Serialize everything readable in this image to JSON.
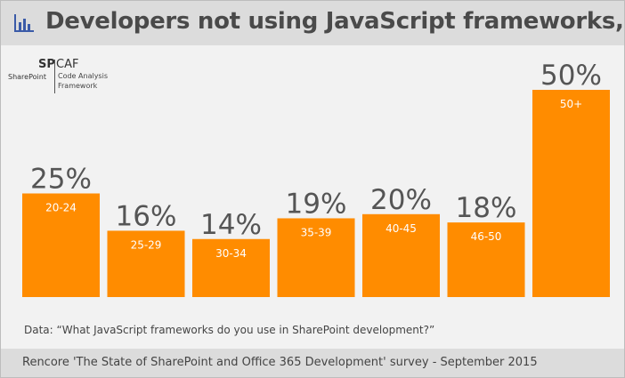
{
  "title": "Developers not using JavaScript frameworks, by age",
  "logo": {
    "sp": "SP",
    "caf": "CAF",
    "sharepoint": "SharePoint",
    "sub_line1": "Code Analysis",
    "sub_line2": "Framework"
  },
  "footnote": "Data: “What JavaScript frameworks do you use in SharePoint development?”",
  "source": "Rencore 'The State of SharePoint and Office 365 Development' survey - September 2015",
  "colors": {
    "bar": "#ff8c00",
    "header_bg": "#dcdcdc",
    "value_text": "#555555",
    "icon": "#3b5ba8"
  },
  "header_icon": "bar-chart-icon",
  "chart_data": {
    "type": "bar",
    "categories": [
      "20-24",
      "25-29",
      "30-34",
      "35-39",
      "40-45",
      "46-50",
      "50+"
    ],
    "values": [
      25,
      16,
      14,
      19,
      20,
      18,
      50
    ],
    "value_labels": [
      "25%",
      "16%",
      "14%",
      "19%",
      "20%",
      "18%",
      "50%"
    ],
    "ylim": [
      0,
      50
    ],
    "grid": false,
    "legend": "none"
  }
}
